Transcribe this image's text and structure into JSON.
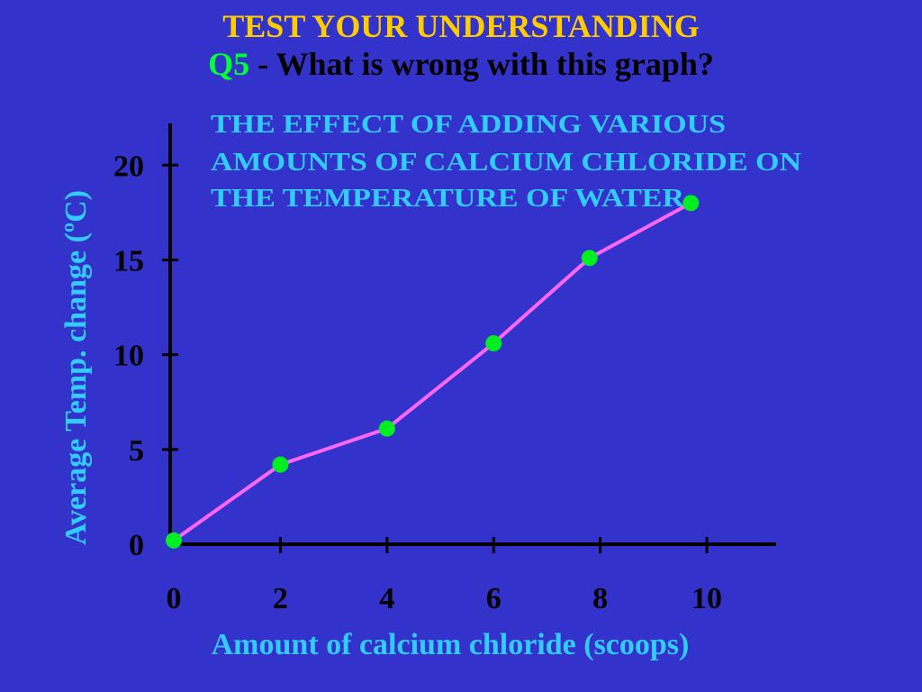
{
  "slide": {
    "heading": "TEST YOUR UNDERSTANDING",
    "question_number": "Q5",
    "question_text": " - What is wrong with this graph?"
  },
  "colors": {
    "background": "#3333cc",
    "heading": "#ffcc00",
    "question_number": "#00ff33",
    "question_text": "#000000",
    "chart_title": "#33ccff",
    "axis_label": "#33ccff",
    "axis_line": "#000000",
    "series_line": "#ff66ff",
    "points": "#00ee22"
  },
  "chart_data": {
    "type": "line",
    "title_lines": [
      "THE EFFECT OF ADDING VARIOUS",
      "AMOUNTS OF CALCIUM CHLORIDE ON",
      "THE TEMPERATURE OF WATER"
    ],
    "xlabel": "Amount of calcium chloride (scoops)",
    "ylabel": "Average Temp. change (ºC)",
    "xticks": [
      0,
      2,
      4,
      6,
      8,
      10
    ],
    "yticks": [
      0,
      5,
      10,
      15,
      20
    ],
    "xlim": [
      0,
      11.3
    ],
    "ylim": [
      0,
      22.2
    ],
    "grid": false,
    "legend": "none",
    "series": [
      {
        "x": [
          0,
          2,
          4,
          6,
          7.8,
          9.7
        ],
        "y": [
          0.2,
          4.2,
          6.1,
          10.6,
          15.1,
          18.0
        ]
      }
    ]
  }
}
